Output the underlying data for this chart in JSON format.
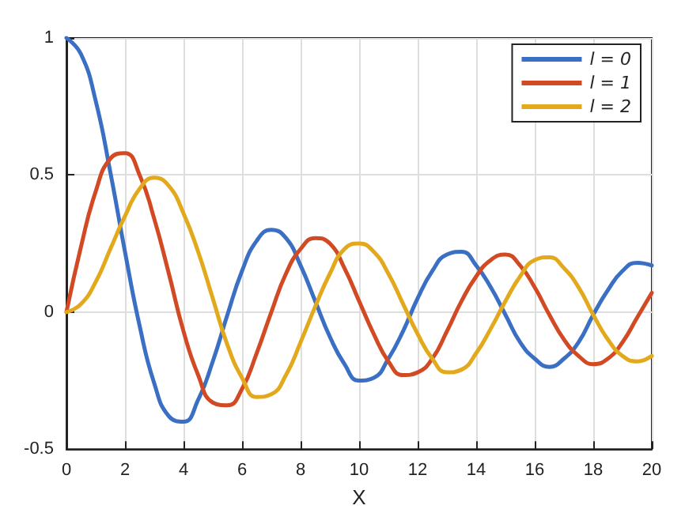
{
  "chart_data": {
    "type": "line",
    "xlabel": "X",
    "x": [
      0,
      0.5,
      1,
      1.5,
      2,
      2.5,
      3,
      3.5,
      4,
      4.5,
      5,
      5.5,
      6,
      6.5,
      7,
      7.5,
      8,
      8.5,
      9,
      9.5,
      10,
      10.5,
      11,
      11.5,
      12,
      12.5,
      13,
      13.5,
      14,
      14.5,
      15,
      15.5,
      16,
      16.5,
      17,
      17.5,
      18,
      18.5,
      19,
      19.5,
      20
    ],
    "series": [
      {
        "name": "l = 0",
        "color": "#3a6fc4",
        "values": [
          1,
          0.94,
          0.77,
          0.51,
          0.22,
          -0.05,
          -0.26,
          -0.38,
          -0.4,
          -0.32,
          -0.18,
          -0.01,
          0.15,
          0.26,
          0.3,
          0.27,
          0.17,
          0.04,
          -0.09,
          -0.19,
          -0.25,
          -0.24,
          -0.17,
          -0.07,
          0.05,
          0.15,
          0.21,
          0.22,
          0.17,
          0.09,
          -0.01,
          -0.11,
          -0.17,
          -0.2,
          -0.17,
          -0.11,
          -0.01,
          0.08,
          0.15,
          0.18,
          0.17
        ]
      },
      {
        "name": "l = 1",
        "color": "#d24a24",
        "values": [
          0,
          0.24,
          0.44,
          0.56,
          0.58,
          0.5,
          0.34,
          0.14,
          -0.07,
          -0.23,
          -0.33,
          -0.34,
          -0.28,
          -0.15,
          0.0,
          0.14,
          0.23,
          0.27,
          0.25,
          0.16,
          0.04,
          -0.08,
          -0.18,
          -0.23,
          -0.22,
          -0.17,
          -0.07,
          0.04,
          0.13,
          0.19,
          0.21,
          0.17,
          0.09,
          -0.01,
          -0.1,
          -0.16,
          -0.19,
          -0.17,
          -0.11,
          -0.02,
          0.07
        ]
      },
      {
        "name": "l = 2",
        "color": "#e3a91c",
        "values": [
          0,
          0.03,
          0.11,
          0.23,
          0.35,
          0.45,
          0.49,
          0.46,
          0.36,
          0.22,
          0.05,
          -0.12,
          -0.24,
          -0.31,
          -0.3,
          -0.23,
          -0.11,
          0.02,
          0.14,
          0.23,
          0.25,
          0.22,
          0.14,
          0.03,
          -0.08,
          -0.17,
          -0.22,
          -0.21,
          -0.15,
          -0.06,
          0.04,
          0.13,
          0.19,
          0.2,
          0.16,
          0.09,
          -0.01,
          -0.1,
          -0.16,
          -0.18,
          -0.16
        ]
      }
    ],
    "xlim": [
      0,
      20
    ],
    "xticks": [
      0,
      2,
      4,
      6,
      8,
      10,
      12,
      14,
      16,
      18,
      20
    ],
    "ylim": [
      -0.5,
      1
    ],
    "yticks": [
      -0.5,
      0,
      0.5,
      1
    ],
    "grid": true,
    "legend": "top right",
    "marker": "none",
    "line_style": "solid"
  }
}
